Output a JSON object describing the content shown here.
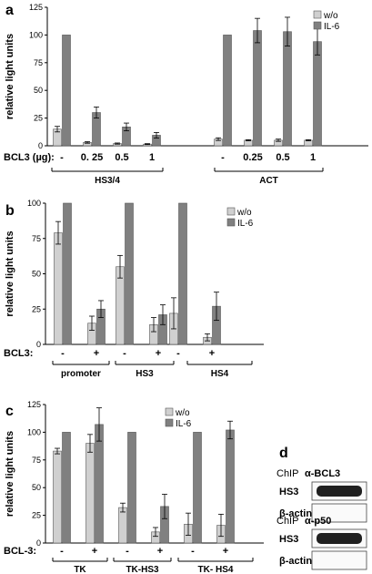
{
  "colors": {
    "w_o": "#d0d0d0",
    "il6": "#808080",
    "axis": "#000000"
  },
  "chart_data": [
    {
      "panel": "a",
      "type": "bar",
      "ylabel": "relative light units",
      "ylim": [
        0,
        125
      ],
      "yticks": [
        "0",
        "25",
        "50",
        "75",
        "100",
        "125"
      ],
      "legend": [
        "w/o",
        "IL-6"
      ],
      "legend_position": "top-right",
      "treatment_label": "BCL3 (µg):",
      "categories": [
        "-",
        "0. 25",
        "0.5",
        "1",
        "-",
        "0.25",
        "0.5",
        "1"
      ],
      "groups": [
        "HS3/4",
        "ACT"
      ],
      "series": [
        {
          "name": "w/o",
          "values": [
            15,
            3,
            2,
            1.5,
            6,
            5,
            5,
            5
          ],
          "errors": [
            2.5,
            0.7,
            0.5,
            0.4,
            1.2,
            0.5,
            1,
            0.5
          ]
        },
        {
          "name": "IL-6",
          "values": [
            100,
            30,
            17,
            9.5,
            100,
            104,
            103,
            94
          ],
          "errors": [
            0,
            5,
            3.5,
            2.5,
            0,
            11,
            13,
            12
          ]
        }
      ]
    },
    {
      "panel": "b",
      "type": "bar",
      "ylabel": "relative light units",
      "ylim": [
        0,
        100
      ],
      "yticks": [
        "0",
        "25",
        "50",
        "75",
        "100"
      ],
      "legend": [
        "w/o",
        "IL-6"
      ],
      "legend_position": "top-right",
      "treatment_label": "BCL3:",
      "categories": [
        "-",
        "+",
        "-",
        "+",
        "-",
        "+"
      ],
      "groups": [
        "promoter",
        "HS3",
        "HS4"
      ],
      "series": [
        {
          "name": "w/o",
          "values": [
            79,
            15,
            55,
            14,
            22,
            5
          ],
          "errors": [
            8,
            5,
            8,
            5,
            11,
            2.5
          ]
        },
        {
          "name": "IL-6",
          "values": [
            100,
            25,
            100,
            21,
            100,
            27
          ],
          "errors": [
            0,
            6,
            0,
            7,
            0,
            10
          ]
        }
      ]
    },
    {
      "panel": "c",
      "type": "bar",
      "ylabel": "relative light units",
      "ylim": [
        0,
        125
      ],
      "yticks": [
        "0",
        "25",
        "50",
        "75",
        "100",
        "125"
      ],
      "legend": [
        "w/o",
        "IL-6"
      ],
      "legend_position": "top-center",
      "treatment_label": "BCL-3:",
      "categories": [
        "-",
        "+",
        "-",
        "+",
        "-",
        "+"
      ],
      "groups": [
        "TK",
        "TK-HS3",
        "TK- HS4"
      ],
      "series": [
        {
          "name": "w/o",
          "values": [
            83,
            90,
            32,
            10,
            17,
            16
          ],
          "errors": [
            2.5,
            8,
            4,
            4,
            10,
            10
          ]
        },
        {
          "name": "IL-6",
          "values": [
            100,
            107,
            100,
            33,
            100,
            102
          ],
          "errors": [
            0,
            15,
            0,
            11,
            0,
            8
          ]
        }
      ]
    }
  ],
  "panel_d": {
    "label": "d",
    "blocks": [
      {
        "chip": "ChIP",
        "antibody": "α-BCL3",
        "rows": [
          "HS3",
          "β-actin"
        ],
        "band_intensity": [
          1.0,
          0.0
        ]
      },
      {
        "chip": "ChIP",
        "antibody": "α-p50",
        "rows": [
          "HS3",
          "β-actin"
        ],
        "band_intensity": [
          1.0,
          0.0
        ]
      }
    ]
  }
}
